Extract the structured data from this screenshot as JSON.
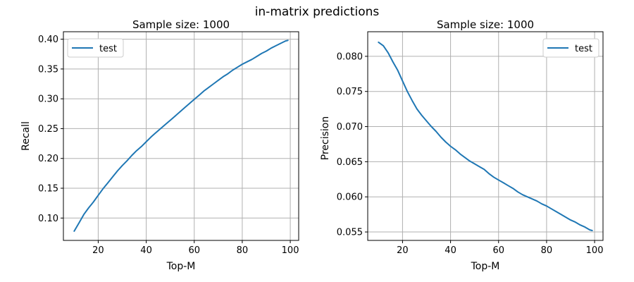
{
  "figure": {
    "suptitle": "in-matrix predictions"
  },
  "colors": {
    "series": "#1f77b4",
    "grid": "#b0b0b0",
    "axes": "#000000"
  },
  "chart_data": [
    {
      "type": "line",
      "title": "Sample size: 1000",
      "xlabel": "Top-M",
      "ylabel": "Recall",
      "xlim": [
        5.5,
        103.5
      ],
      "ylim": [
        0.0625,
        0.4125
      ],
      "xticks": [
        20,
        40,
        60,
        80,
        100
      ],
      "xtick_labels": [
        "20",
        "40",
        "60",
        "80",
        "100"
      ],
      "yticks": [
        0.1,
        0.15,
        0.2,
        0.25,
        0.3,
        0.35,
        0.4
      ],
      "ytick_labels": [
        "0.10",
        "0.15",
        "0.20",
        "0.25",
        "0.30",
        "0.35",
        "0.40"
      ],
      "grid": true,
      "legend": {
        "position": "upper-left",
        "entries": [
          "test"
        ]
      },
      "series": [
        {
          "name": "test",
          "color": "#1f77b4",
          "x": [
            10,
            12,
            14,
            16,
            18,
            20,
            22,
            24,
            26,
            28,
            30,
            32,
            34,
            36,
            38,
            40,
            42,
            44,
            46,
            48,
            50,
            52,
            54,
            56,
            58,
            60,
            62,
            64,
            66,
            68,
            70,
            72,
            74,
            76,
            78,
            80,
            82,
            84,
            86,
            88,
            90,
            92,
            94,
            96,
            98,
            99
          ],
          "y": [
            0.078,
            0.092,
            0.106,
            0.117,
            0.127,
            0.138,
            0.149,
            0.159,
            0.169,
            0.179,
            0.188,
            0.196,
            0.205,
            0.213,
            0.22,
            0.228,
            0.236,
            0.243,
            0.25,
            0.257,
            0.264,
            0.271,
            0.278,
            0.285,
            0.292,
            0.299,
            0.306,
            0.313,
            0.319,
            0.325,
            0.331,
            0.337,
            0.342,
            0.348,
            0.353,
            0.358,
            0.362,
            0.366,
            0.371,
            0.376,
            0.38,
            0.385,
            0.389,
            0.393,
            0.397,
            0.398
          ]
        }
      ]
    },
    {
      "type": "line",
      "title": "Sample size: 1000",
      "xlabel": "Top-M",
      "ylabel": "Precision",
      "xlim": [
        5.5,
        103.5
      ],
      "ylim": [
        0.0538,
        0.0835
      ],
      "xticks": [
        20,
        40,
        60,
        80,
        100
      ],
      "xtick_labels": [
        "20",
        "40",
        "60",
        "80",
        "100"
      ],
      "yticks": [
        0.055,
        0.06,
        0.065,
        0.07,
        0.075,
        0.08
      ],
      "ytick_labels": [
        "0.055",
        "0.060",
        "0.065",
        "0.070",
        "0.075",
        "0.080"
      ],
      "grid": true,
      "legend": {
        "position": "upper-right",
        "entries": [
          "test"
        ]
      },
      "series": [
        {
          "name": "test",
          "color": "#1f77b4",
          "x": [
            10,
            12,
            14,
            16,
            18,
            20,
            22,
            24,
            26,
            28,
            30,
            32,
            34,
            36,
            38,
            40,
            42,
            44,
            46,
            48,
            50,
            52,
            54,
            56,
            58,
            60,
            62,
            64,
            66,
            68,
            70,
            72,
            74,
            76,
            78,
            80,
            82,
            84,
            86,
            88,
            90,
            92,
            94,
            96,
            98,
            99
          ],
          "y": [
            0.082,
            0.0815,
            0.0805,
            0.0792,
            0.078,
            0.0765,
            0.075,
            0.0737,
            0.0725,
            0.0716,
            0.0708,
            0.07,
            0.0693,
            0.0685,
            0.0678,
            0.0672,
            0.0667,
            0.0661,
            0.0656,
            0.0651,
            0.0647,
            0.0643,
            0.0639,
            0.0633,
            0.0628,
            0.0624,
            0.062,
            0.0616,
            0.0612,
            0.0607,
            0.0603,
            0.06,
            0.0597,
            0.0594,
            0.059,
            0.0587,
            0.0583,
            0.0579,
            0.0575,
            0.0571,
            0.0567,
            0.0564,
            0.056,
            0.0557,
            0.0553,
            0.0552
          ]
        }
      ]
    }
  ]
}
